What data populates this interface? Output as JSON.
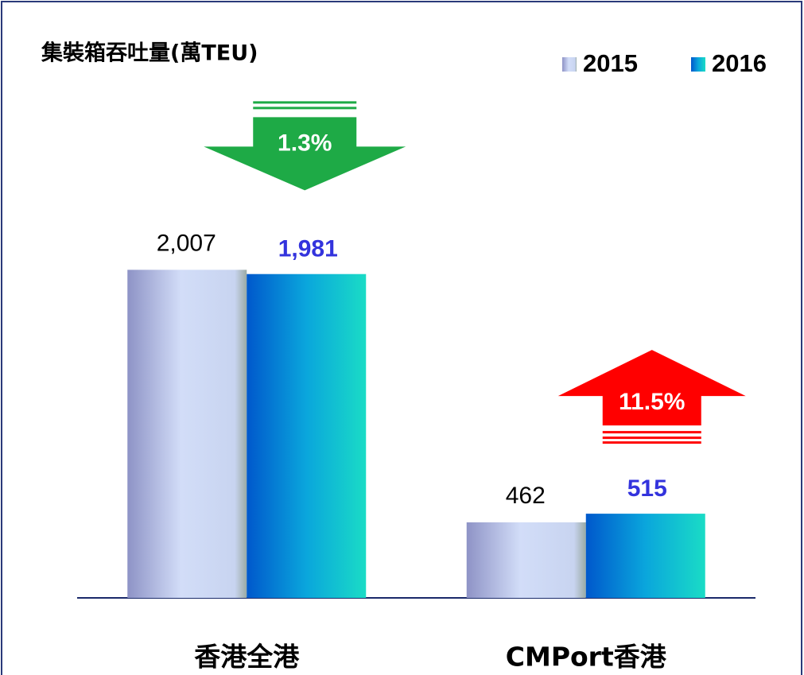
{
  "chart_data": {
    "type": "bar",
    "title": "集裝箱吞吐量(萬TEU)",
    "categories": [
      "香港全港",
      "CMPort香港"
    ],
    "series": [
      {
        "name": "2015",
        "color": "#b8c4ee",
        "values": [
          2007,
          462
        ],
        "value_labels": [
          "2,007",
          "462"
        ]
      },
      {
        "name": "2016",
        "color": "#0a8fd8",
        "values": [
          1981,
          515
        ],
        "value_labels": [
          "1,981",
          "515"
        ]
      }
    ],
    "ylim": [
      0,
      2500
    ],
    "annotations": [
      {
        "text": "1.3%",
        "direction": "down",
        "color": "#1eaa46"
      },
      {
        "text": "11.5%",
        "direction": "up",
        "color": "#ff0000"
      }
    ]
  }
}
